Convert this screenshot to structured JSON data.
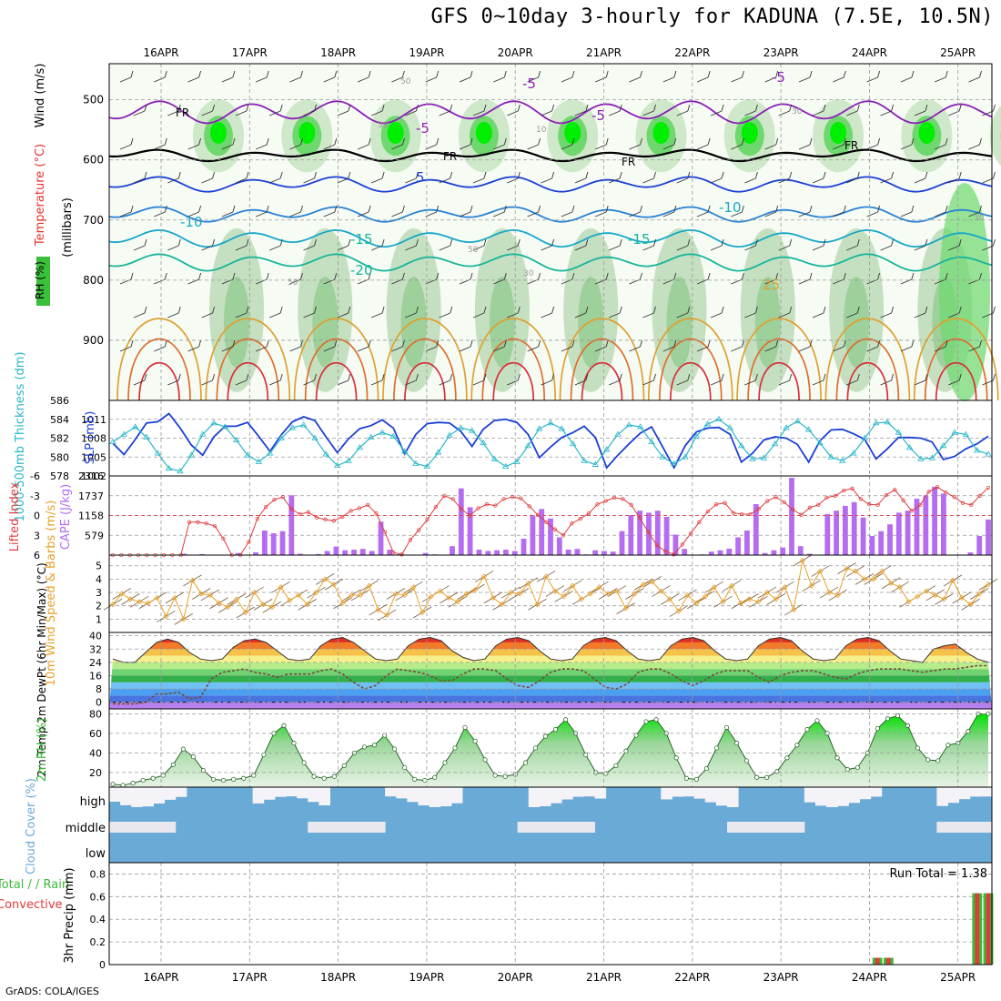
{
  "header": {
    "title": "GFS 0~10day 3-hourly for KADUNA (7.5E, 10.5N)",
    "footer": "GrADS: COLA/IGES"
  },
  "colors": {
    "rh_green": "#00ee00",
    "temperature_label": "#e8302c",
    "freezing": "#000000",
    "slp": "#1c3fd6",
    "thickness": "#2ab7c9",
    "cape": "#b56cf0",
    "lifted_index": "#e03a3a",
    "wind_speed": "#e8a12a",
    "barbs": "#7a5a3a",
    "dewpoint": "#7a4a3a",
    "rh2m": "#3aba3a",
    "cloud": "#6aaad6",
    "precip_total": "#3aba3a",
    "precip_conv": "#e03a3a"
  },
  "chart_data": [
    {
      "type": "heatmap",
      "panel": "upper-air",
      "x_ticks": [
        "16APR",
        "17APR",
        "18APR",
        "19APR",
        "20APR",
        "21APR",
        "22APR",
        "23APR",
        "24APR",
        "25APR"
      ],
      "ylabel_parts": [
        "RH (%)",
        "Temperature (°C)",
        "Wind (m/s)",
        "(millibars)"
      ],
      "y_ticks": [
        500,
        600,
        700,
        800,
        900
      ],
      "ylim": [
        1000,
        440
      ],
      "temperature_contour_labels": [
        "-5",
        "-5",
        "-5",
        "-5",
        "5",
        "-10",
        "-10",
        "-15",
        "-15",
        "-20",
        "25"
      ],
      "freezing_labels": [
        "FR",
        "FR",
        "FR",
        "FR"
      ],
      "rh_contour_labels": [
        "50",
        "30",
        "50",
        "10",
        "50",
        "30",
        "30",
        "30"
      ]
    },
    {
      "type": "line",
      "panel": "thickness-slp",
      "ylabel_left": "1000-500mb Thickness (dm)",
      "ylabel_right": "SLP (mb)",
      "y_ticks_left": [
        578,
        580,
        582,
        584,
        586
      ],
      "y_ticks_right": [
        1005,
        1008,
        1011,
        1002
      ],
      "series": [
        {
          "name": "SLP (mb)",
          "values": [
            1007.2,
            1005.4,
            1007.8,
            1010.4,
            1010.6,
            1011.9,
            1009.6,
            1006.9,
            1005.3,
            1008.2,
            1009.9,
            1009.9,
            1010.5,
            1008.3,
            1005.9,
            1008.5,
            1010.6,
            1011.4,
            1010.8,
            1008.2,
            1005.7,
            1007.9,
            1009.5,
            1010.0,
            1010.9,
            1009.6,
            1005.5,
            1008.6,
            1010.3,
            1010.5,
            1010.4,
            1009.1,
            1006.7,
            1009.4,
            1010.8,
            1011.0,
            1010.5,
            1008.6,
            1004.9,
            1006.6,
            1008.1,
            1008.9,
            1009.9,
            1008.1,
            1003.3,
            1005.3,
            1007.1,
            1008.8,
            1009.8,
            1006.6,
            1003.3,
            1006.8,
            1009.0,
            1009.6,
            1009.7,
            1008.6,
            1004.2,
            1005.6,
            1007.7,
            1008.2,
            1008.0,
            1007.0,
            1004.2,
            1007.6,
            1009.3,
            1009.4,
            1008.7,
            1007.8,
            1004.7,
            1006.3,
            1008.1,
            1008.1,
            1008.0,
            1007.4,
            1004.6,
            1005.1,
            1006.3,
            1007.1,
            1008.3
          ]
        },
        {
          "name": "Thickness (dm)",
          "values": [
            581.6,
            582.4,
            583.2,
            582.1,
            580.4,
            578.8,
            578.5,
            580.2,
            582.4,
            583.6,
            583.2,
            581.8,
            580.2,
            579.5,
            580.4,
            582.0,
            583.1,
            583.4,
            582.0,
            580.3,
            579.1,
            579.6,
            581.0,
            582.1,
            582.6,
            582.2,
            580.6,
            579.3,
            579.0,
            580.5,
            582.3,
            583.1,
            582.8,
            581.5,
            579.8,
            579.0,
            579.5,
            581.2,
            583.0,
            583.6,
            583.0,
            581.4,
            579.6,
            579.2,
            580.8,
            582.4,
            583.4,
            583.2,
            581.6,
            580.0,
            579.3,
            580.0,
            582.2,
            583.5,
            584.0,
            583.1,
            581.2,
            579.8,
            579.9,
            581.4,
            583.1,
            583.8,
            582.9,
            581.5,
            580.0,
            579.6,
            580.4,
            582.0,
            583.6,
            583.7,
            582.6,
            581.0,
            579.8,
            579.9,
            581.2,
            582.6,
            582.4,
            580.7,
            580.3
          ]
        }
      ]
    },
    {
      "type": "bar",
      "panel": "cape-li",
      "ylabel_left": "Lifted Index",
      "ylabel_right": "CAPE (J/kg)",
      "y_ticks_left": [
        "6",
        "3",
        "0",
        "-3",
        "-6"
      ],
      "y_ticks_right": [
        "579",
        "1158",
        "1737",
        "2316"
      ],
      "series": [
        {
          "name": "CAPE (J/kg)",
          "values": [
            0,
            0,
            0,
            0,
            0,
            0,
            0,
            0,
            40,
            0,
            30,
            0,
            0,
            0,
            60,
            0,
            80,
            720,
            640,
            700,
            1750,
            40,
            0,
            30,
            120,
            250,
            140,
            160,
            180,
            120,
            980,
            160,
            20,
            0,
            10,
            60,
            20,
            0,
            260,
            1950,
            1400,
            160,
            120,
            140,
            160,
            120,
            480,
            1160,
            1350,
            1070,
            520,
            160,
            180,
            20,
            140,
            120,
            100,
            700,
            1170,
            1300,
            1240,
            1300,
            1120,
            600,
            180,
            0,
            20,
            100,
            140,
            190,
            520,
            720,
            1490,
            60,
            140,
            220,
            2260,
            260,
            40,
            0,
            1200,
            1300,
            1440,
            1550,
            1100,
            560,
            700,
            900,
            1240,
            1300,
            1650,
            1750,
            2000,
            1800,
            0,
            0,
            80,
            560,
            1040
          ]
        },
        {
          "name": "Lifted Index",
          "values": [
            6,
            6,
            6,
            6,
            6,
            6,
            6,
            6,
            6,
            1.0,
            1.0,
            1.2,
            1.6,
            3.5,
            6,
            6,
            4.0,
            0.5,
            -1.3,
            -2.4,
            -2.8,
            -1.0,
            -0.2,
            -0.5,
            0.3,
            0.6,
            0.8,
            0.2,
            -0.7,
            -1.1,
            -1.6,
            -0.3,
            2.5,
            5.6,
            5.9,
            3.7,
            2.2,
            0.6,
            -1.3,
            -3.0,
            -2.5,
            -1.0,
            0.0,
            -1.1,
            -1.7,
            -1.5,
            -2.5,
            -2.8,
            -2.6,
            -1.4,
            -0.1,
            1.0,
            2.1,
            3.0,
            1.2,
            0.5,
            -0.3,
            -1.7,
            -2.2,
            -2.7,
            -2.5,
            -1.6,
            0.4,
            2.5,
            4.5,
            5.4,
            5.9,
            4.4,
            2.7,
            1.0,
            -0.6,
            -1.7,
            -1.9,
            -0.4,
            -0.2,
            -0.2,
            -1.0,
            -2.2,
            -2.8,
            -2.0,
            -0.9,
            -0.1,
            -1.2,
            -1.6,
            -2.7,
            -3.0,
            -3.8,
            -4.1,
            -2.5,
            -1.7,
            -1.6,
            -3.1,
            -3.9,
            -2.3,
            -0.7,
            -1.6,
            -3.6,
            -4.3,
            -3.5,
            -2.8,
            -1.9,
            -1.6,
            -3.0,
            -4.2
          ]
        }
      ]
    },
    {
      "type": "line",
      "panel": "wind",
      "ylabel": "10m Wind Speed & Barbs (m/s)",
      "y_ticks": [
        1,
        2,
        3,
        4,
        5
      ],
      "series": [
        {
          "name": "10m Wind Speed (m/s)",
          "values": [
            2.1,
            2.9,
            2.5,
            2.3,
            2.2,
            2.6,
            1.2,
            2.6,
            1.0,
            3.9,
            2.9,
            2.8,
            2.2,
            1.9,
            2.5,
            1.5,
            3.0,
            2.1,
            1.9,
            3.4,
            2.4,
            2.8,
            2.1,
            3.0,
            4.0,
            3.6,
            2.2,
            2.8,
            2.8,
            3.5,
            1.7,
            1.3,
            2.9,
            2.8,
            3.4,
            1.5,
            2.7,
            3.1,
            2.6,
            2.3,
            2.9,
            3.2,
            4.2,
            2.6,
            2.1,
            3.0,
            2.9,
            3.7,
            2.1,
            4.2,
            3.1,
            2.7,
            3.5,
            2.5,
            2.9,
            3.4,
            2.9,
            3.1,
            1.8,
            2.9,
            3.6,
            3.8,
            3.1,
            2.5,
            1.6,
            2.8,
            2.2,
            2.7,
            3.4,
            2.3,
            3.5,
            2.2,
            2.5,
            2.3,
            3.0,
            2.5,
            3.4,
            1.7,
            5.4,
            3.5,
            4.6,
            3.0,
            2.8,
            4.8,
            4.6,
            4.0,
            4.0,
            4.6,
            3.7,
            3.4,
            2.3,
            2.7,
            3.1,
            2.8,
            2.5,
            3.9,
            2.6,
            2.1,
            2.9,
            3.6
          ]
        }
      ]
    },
    {
      "type": "area",
      "panel": "temperature",
      "ylabel": "2m Temp 2m DewPt (6hr Min/Max) (°C)",
      "y_ticks": [
        0,
        8,
        16,
        24,
        32,
        40
      ],
      "series": [
        {
          "name": "2m Temp (°C)",
          "values": [
            26,
            24,
            24,
            30,
            36,
            38,
            36,
            30,
            26,
            25,
            26,
            33,
            37,
            38,
            36,
            31,
            26,
            25,
            26,
            34,
            38,
            39,
            36,
            31,
            26,
            25,
            26,
            34,
            38,
            39,
            37,
            31,
            27,
            25,
            26,
            34,
            38,
            39,
            37,
            31,
            26,
            25,
            26,
            34,
            38,
            39,
            37,
            31,
            26,
            25,
            26,
            34,
            38,
            39,
            37,
            31,
            26,
            25,
            26,
            34,
            38,
            39,
            37,
            31,
            26,
            25,
            26,
            34,
            38,
            39,
            37,
            31,
            26,
            25,
            24,
            32,
            34,
            35,
            30,
            26,
            24
          ]
        },
        {
          "name": "2m DewPt (°C)",
          "values": [
            -1,
            -1,
            -1,
            0,
            5,
            5,
            6,
            2,
            3,
            14,
            18,
            19,
            20,
            18,
            17,
            15,
            17,
            17,
            17,
            19,
            20,
            17,
            12,
            8,
            10,
            16,
            20,
            19,
            18,
            16,
            13,
            13,
            17,
            20,
            20,
            19,
            14,
            10,
            9,
            13,
            18,
            20,
            20,
            19,
            14,
            9,
            8,
            11,
            18,
            20,
            20,
            17,
            13,
            10,
            13,
            17,
            19,
            19,
            19,
            15,
            12,
            16,
            18,
            19,
            19,
            17,
            15,
            14,
            17,
            19,
            20,
            20,
            20,
            19,
            18,
            19,
            20,
            20,
            21,
            22,
            22
          ]
        }
      ]
    },
    {
      "type": "area",
      "panel": "rh",
      "ylabel": "2m RH (%)",
      "y_ticks": [
        20,
        40,
        60,
        80
      ],
      "series": [
        {
          "name": "2m RH (%)",
          "values": [
            8,
            7,
            9,
            12,
            14,
            17,
            28,
            44,
            36,
            22,
            13,
            12,
            13,
            14,
            17,
            38,
            60,
            68,
            50,
            30,
            16,
            14,
            16,
            27,
            40,
            46,
            48,
            58,
            44,
            25,
            13,
            12,
            15,
            30,
            45,
            66,
            52,
            33,
            17,
            16,
            18,
            30,
            45,
            57,
            64,
            74,
            60,
            38,
            20,
            19,
            27,
            42,
            58,
            72,
            74,
            60,
            35,
            14,
            13,
            24,
            45,
            66,
            50,
            32,
            15,
            15,
            21,
            35,
            48,
            64,
            73,
            60,
            35,
            23,
            25,
            40,
            65,
            75,
            78,
            68,
            45,
            33,
            32,
            48,
            50,
            62,
            80,
            80
          ]
        }
      ]
    },
    {
      "type": "heatmap",
      "panel": "cloud",
      "ylabel": "Cloud Cover (%)",
      "levels": [
        "high",
        "middle",
        "low"
      ]
    },
    {
      "type": "bar",
      "panel": "precip",
      "ylabel_left": "Total / Rain Convective",
      "ylabel_right": "3hr Precip (mm)",
      "y_ticks": [
        0,
        0.2,
        0.4,
        0.6,
        0.8
      ],
      "run_total_text": "Run Total = 1.38",
      "x_ticks": [
        "16APR",
        "17APR",
        "18APR",
        "19APR",
        "20APR",
        "21APR",
        "22APR",
        "23APR",
        "24APR",
        "25APR"
      ],
      "series": [
        {
          "name": "Total",
          "values": [
            0,
            0,
            0,
            0,
            0,
            0,
            0,
            0,
            0,
            0,
            0,
            0,
            0,
            0,
            0,
            0,
            0,
            0,
            0,
            0,
            0,
            0,
            0,
            0,
            0,
            0,
            0,
            0,
            0,
            0,
            0,
            0,
            0,
            0,
            0,
            0,
            0,
            0,
            0,
            0,
            0,
            0,
            0,
            0,
            0,
            0,
            0,
            0,
            0,
            0,
            0,
            0,
            0,
            0,
            0,
            0,
            0,
            0,
            0,
            0,
            0,
            0,
            0,
            0,
            0,
            0,
            0,
            0,
            0,
            0.06,
            0.06,
            0,
            0,
            0,
            0,
            0,
            0,
            0,
            0.63,
            0.63
          ]
        },
        {
          "name": "Convective",
          "values": [
            0,
            0,
            0,
            0,
            0,
            0,
            0,
            0,
            0,
            0,
            0,
            0,
            0,
            0,
            0,
            0,
            0,
            0,
            0,
            0,
            0,
            0,
            0,
            0,
            0,
            0,
            0,
            0,
            0,
            0,
            0,
            0,
            0,
            0,
            0,
            0,
            0,
            0,
            0,
            0,
            0,
            0,
            0,
            0,
            0,
            0,
            0,
            0,
            0,
            0,
            0,
            0,
            0,
            0,
            0,
            0,
            0,
            0,
            0,
            0,
            0,
            0,
            0,
            0,
            0,
            0,
            0,
            0,
            0,
            0.06,
            0.06,
            0,
            0,
            0,
            0,
            0,
            0,
            0,
            0.63,
            0.63
          ]
        }
      ]
    }
  ]
}
